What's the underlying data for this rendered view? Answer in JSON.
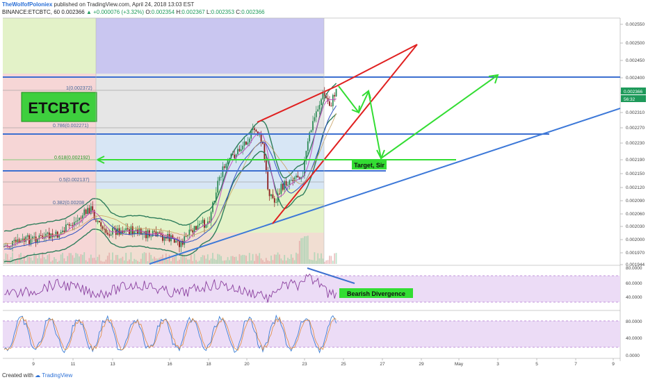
{
  "header": {
    "author": "TheWolfofPoloniex",
    "published": "published on TradingView.com, April 24, 2018 13:03 EST",
    "symbol": "BINANCE:ETCBTC, 60",
    "last": "0.002366",
    "change": "▲ +0.000076 (+3.32%)",
    "o_label": "O:",
    "o_value": "0.002354",
    "h_label": "H:",
    "h_value": "0.002367",
    "l_label": "L:",
    "l_value": "0.002353",
    "c_label": "C:",
    "c_value": "0.002366"
  },
  "footer": {
    "created_with": "Created with",
    "brand": "TradingView"
  },
  "annotations": {
    "ticker_box": "ETCBTC",
    "target_label": "Target, Sir",
    "divergence_label": "Bearish Divergence",
    "last_price_tag": "0.002366",
    "time_tag": "56:32"
  },
  "colors": {
    "fib_green": "#3ec43e",
    "fib_blue": "#3c6fd0",
    "wedge_red": "#e02020",
    "trend_blue": "#3c78d8",
    "rsi_fill": "#e8d6f5",
    "stoch_fill": "#e8d6f5"
  },
  "chart_data": {
    "type": "candlestick",
    "price_axis": {
      "ticks": [
        "0.002550",
        "0.002500",
        "0.002450",
        "0.002400",
        "0.002350",
        "0.002310",
        "0.002270",
        "0.002230",
        "0.002190",
        "0.002150",
        "0.002120",
        "0.002090",
        "0.002060",
        "0.002030",
        "0.002000",
        "0.001970",
        "0.001944"
      ],
      "range": [
        0.00194,
        0.00256
      ]
    },
    "x_axis": {
      "ticks": [
        "9",
        "11",
        "13",
        "16",
        "18",
        "20",
        "23",
        "25",
        "27",
        "29",
        "May",
        "3",
        "5",
        "7",
        "9"
      ]
    },
    "fib_levels": [
      {
        "label": "1(0.002372)",
        "value": 0.002372
      },
      {
        "label": "0.786(0.002271)",
        "value": 0.002271
      },
      {
        "label": "0.618(0.002192)",
        "value": 0.002192
      },
      {
        "label": "0.5(0.002137)",
        "value": 0.002137
      },
      {
        "label": "0.382(0.00208",
        "value": 0.00208
      }
    ],
    "horizontal_levels": [
      0.0024,
      0.002271,
      0.00216
    ],
    "rsi_axis": {
      "ticks": [
        "80.0000",
        "60.0000",
        "40.0000"
      ],
      "range": [
        25,
        85
      ]
    },
    "stoch_axis": {
      "ticks": [
        "80.0000",
        "40.0000",
        "0.0000"
      ],
      "range": [
        -5,
        100
      ]
    }
  }
}
